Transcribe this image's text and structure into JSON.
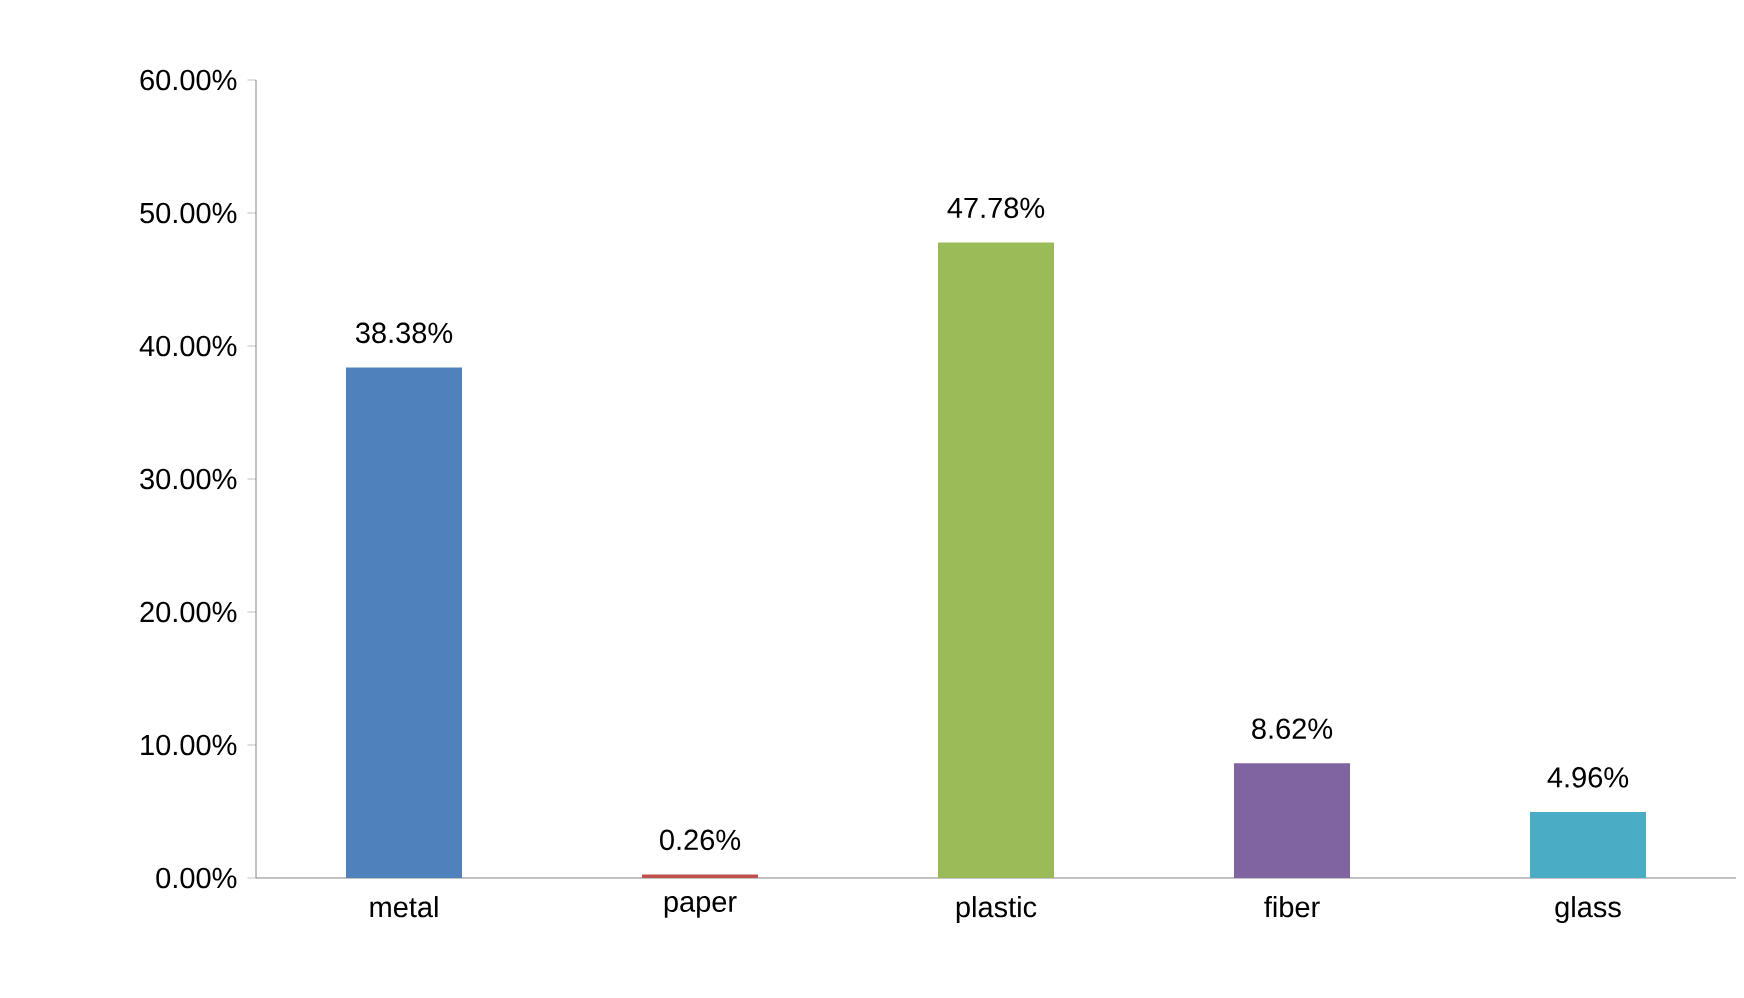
{
  "chart_data": {
    "type": "bar",
    "categories": [
      "metal",
      "paper",
      "plastic",
      "fiber",
      "glass"
    ],
    "values": [
      38.38,
      0.26,
      47.78,
      8.62,
      4.96
    ],
    "colors": [
      "#4f81bd",
      "#c0504d",
      "#9bbb59",
      "#8064a2",
      "#4bacc6"
    ],
    "value_labels": [
      "38.38%",
      "0.26%",
      "47.78%",
      "8.62%",
      "4.96%"
    ],
    "ylim": [
      0,
      60
    ],
    "yticks": [
      {
        "value": 0,
        "label": "0.00%"
      },
      {
        "value": 10,
        "label": "10.00%"
      },
      {
        "value": 20,
        "label": "20.00%"
      },
      {
        "value": 30,
        "label": "30.00%"
      },
      {
        "value": 40,
        "label": "40.00%"
      },
      {
        "value": 50,
        "label": "50.00%"
      },
      {
        "value": 60,
        "label": "60.00%"
      }
    ],
    "grid": false
  }
}
